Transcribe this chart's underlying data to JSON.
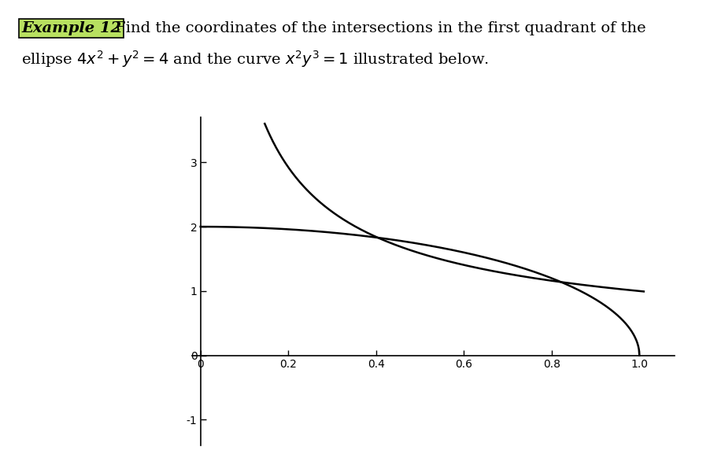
{
  "xlim": [
    -0.02,
    1.08
  ],
  "ylim": [
    -1.4,
    3.7
  ],
  "xticks": [
    0.0,
    0.2,
    0.4,
    0.6,
    0.8,
    1.0
  ],
  "yticks": [
    -1,
    0,
    1,
    2,
    3
  ],
  "curve_color": "#000000",
  "background_color": "#ffffff",
  "linewidth": 1.8,
  "figsize": [
    9.02,
    5.96
  ],
  "dpi": 100,
  "example_label": "Example 12",
  "highlight_color": "#b8e060",
  "line1_text": " Find the coordinates of the intersections in the first quadrant of the",
  "line2_text": "ellipse $4x^2 + y^2 = 4$ and the curve $x^2y^3 = 1$ illustrated below.",
  "fontsize_title": 14,
  "fontsize_ticks": 11
}
